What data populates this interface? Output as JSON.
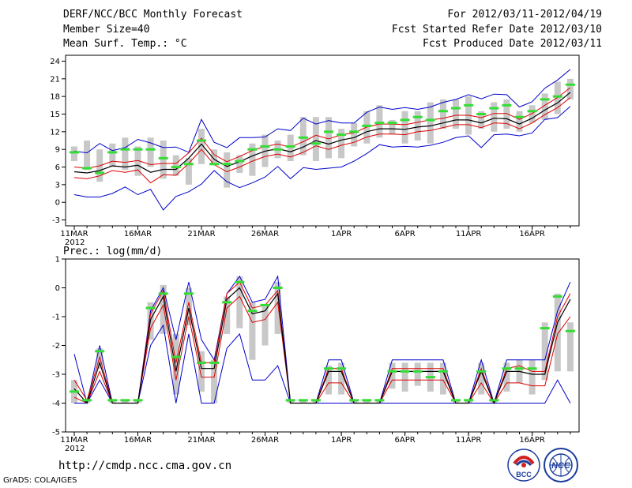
{
  "header": {
    "title": "DERF/NCC/BCC Monthly Forecast",
    "member_size": "Member Size=40",
    "variable": "Mean Surf. Temp.: °C",
    "period": "For 2012/03/11-2012/04/19",
    "started": "Fcst Started Refer Date 2012/03/10",
    "produced": "Fcst Produced Date 2012/03/11"
  },
  "footer": {
    "url": "http://cmdp.ncc.cma.gov.cn",
    "grads": "GrADS: COLA/IGES"
  },
  "logos": {
    "bcc": "BCC",
    "ncc": "NCC"
  },
  "colors": {
    "ens_max_min": "#0000cc",
    "spread": "#dd0000",
    "mean": "#000000",
    "obs_clim": "#33dd33",
    "boxes": "#c8c8c8"
  },
  "chart_data": [
    {
      "type": "line",
      "name": "temperature",
      "ylabel": "Mean Surf. Temp.: °C",
      "ylim": [
        -4,
        25
      ],
      "yticks": [
        -3,
        0,
        3,
        6,
        9,
        12,
        15,
        18,
        21,
        24
      ],
      "xtick_labels": [
        {
          "day": 0,
          "label": "11MAR"
        },
        {
          "day": 5,
          "label": "16MAR"
        },
        {
          "day": 10,
          "label": "21MAR"
        },
        {
          "day": 15,
          "label": "26MAR"
        },
        {
          "day": 21,
          "label": "1APR"
        },
        {
          "day": 26,
          "label": "6APR"
        },
        {
          "day": 31,
          "label": "11APR"
        },
        {
          "day": 36,
          "label": "16APR"
        }
      ],
      "year_label": "2012",
      "series": [
        {
          "name": "ensemble mean",
          "values": [
            5.2,
            5.0,
            5.4,
            6.2,
            6.0,
            6.3,
            5.1,
            5.6,
            5.6,
            7.5,
            9.9,
            7.3,
            6.1,
            6.9,
            7.9,
            8.7,
            9.1,
            8.6,
            9.4,
            10.5,
            9.9,
            10.6,
            11.0,
            12.0,
            12.5,
            12.5,
            12.4,
            12.8,
            13.0,
            13.5,
            14.0,
            14.0,
            13.5,
            14.3,
            14.2,
            13.3,
            14.3,
            15.7,
            16.9,
            18.7
          ]
        },
        {
          "name": "upper spread",
          "values": [
            6.0,
            5.8,
            6.2,
            7.0,
            6.8,
            7.1,
            6.4,
            6.6,
            6.6,
            8.4,
            10.9,
            8.1,
            6.9,
            7.8,
            8.8,
            9.5,
            9.9,
            9.4,
            10.3,
            11.4,
            10.8,
            11.5,
            11.8,
            12.8,
            13.3,
            13.3,
            13.2,
            13.6,
            14.0,
            14.3,
            14.8,
            14.8,
            14.4,
            15.1,
            15.1,
            14.1,
            15.1,
            16.5,
            17.8,
            19.5
          ]
        },
        {
          "name": "lower spread",
          "values": [
            4.2,
            4.0,
            4.5,
            5.4,
            5.1,
            5.5,
            3.3,
            4.7,
            4.6,
            6.6,
            9.0,
            6.4,
            5.2,
            6.0,
            7.0,
            7.8,
            8.2,
            7.7,
            8.5,
            9.6,
            9.0,
            9.7,
            10.2,
            11.1,
            11.6,
            11.6,
            11.5,
            12.0,
            12.2,
            12.7,
            13.2,
            13.2,
            12.7,
            13.5,
            13.4,
            12.5,
            13.5,
            14.9,
            16.1,
            17.8
          ]
        },
        {
          "name": "ensemble max",
          "values": [
            8.7,
            8.4,
            10.0,
            8.8,
            9.3,
            10.7,
            10.1,
            9.3,
            9.4,
            8.5,
            14.1,
            10.2,
            9.3,
            11.0,
            11.0,
            11.1,
            12.5,
            12.2,
            14.3,
            13.3,
            13.9,
            13.5,
            13.5,
            15.3,
            16.2,
            15.8,
            16.1,
            15.8,
            16.2,
            17.0,
            17.5,
            18.3,
            17.6,
            18.4,
            18.3,
            16.2,
            17.1,
            19.4,
            20.8,
            22.6
          ]
        },
        {
          "name": "ensemble min",
          "values": [
            1.3,
            0.9,
            0.9,
            1.5,
            2.6,
            1.3,
            2.2,
            -1.3,
            1.0,
            1.8,
            3.1,
            5.4,
            3.5,
            2.5,
            3.3,
            4.3,
            6.1,
            4.0,
            5.9,
            5.6,
            5.8,
            6.0,
            7.0,
            8.3,
            9.8,
            9.4,
            9.5,
            9.4,
            9.7,
            10.2,
            11.0,
            11.3,
            9.3,
            11.5,
            11.6,
            11.3,
            11.8,
            14.1,
            14.4,
            16.3
          ]
        },
        {
          "name": "observed climatology",
          "values": [
            8.5,
            5.8,
            5.0,
            8.5,
            9.0,
            9.0,
            9.0,
            7.5,
            6.0,
            6.5,
            10.5,
            6.5,
            6.5,
            7.0,
            9.0,
            9.5,
            9.0,
            9.5,
            11.0,
            10.0,
            12.0,
            11.5,
            12.0,
            13.0,
            13.5,
            13.5,
            14.0,
            14.5,
            14.0,
            15.5,
            16.0,
            16.5,
            15.0,
            16.0,
            16.5,
            14.5,
            15.5,
            17.5,
            18.0,
            20.0
          ]
        }
      ],
      "box_ranges": [
        [
          7.0,
          9.5
        ],
        [
          5.5,
          10.5
        ],
        [
          3.5,
          9.0
        ],
        [
          6.0,
          10.0
        ],
        [
          5.5,
          11.0
        ],
        [
          4.5,
          9.5
        ],
        [
          6.0,
          11.0
        ],
        [
          4.0,
          10.5
        ],
        [
          4.5,
          8.0
        ],
        [
          3.0,
          7.5
        ],
        [
          6.5,
          12.5
        ],
        [
          6.5,
          9.0
        ],
        [
          2.5,
          8.5
        ],
        [
          5.0,
          8.0
        ],
        [
          4.5,
          10.0
        ],
        [
          6.0,
          11.5
        ],
        [
          7.5,
          10.5
        ],
        [
          7.0,
          11.5
        ],
        [
          8.0,
          14.5
        ],
        [
          7.0,
          14.5
        ],
        [
          7.5,
          14.5
        ],
        [
          7.5,
          12.5
        ],
        [
          9.5,
          13.5
        ],
        [
          10.0,
          15.5
        ],
        [
          11.0,
          16.5
        ],
        [
          11.5,
          14.0
        ],
        [
          10.0,
          15.5
        ],
        [
          10.5,
          15.5
        ],
        [
          10.0,
          17.0
        ],
        [
          12.5,
          17.5
        ],
        [
          12.5,
          17.5
        ],
        [
          11.5,
          18.0
        ],
        [
          12.5,
          15.5
        ],
        [
          12.0,
          17.0
        ],
        [
          12.5,
          17.5
        ],
        [
          12.0,
          15.5
        ],
        [
          13.5,
          16.5
        ],
        [
          14.0,
          18.5
        ],
        [
          15.0,
          20.5
        ],
        [
          17.5,
          21.0
        ]
      ]
    },
    {
      "type": "line",
      "name": "precipitation",
      "ylabel": "Prec.: log(mm/d)",
      "ylim": [
        -5,
        1
      ],
      "yticks": [
        -5,
        -4,
        -3,
        -2,
        -1,
        0,
        1
      ],
      "xtick_labels": [
        {
          "day": 0,
          "label": "11MAR"
        },
        {
          "day": 5,
          "label": "16MAR"
        },
        {
          "day": 10,
          "label": "21MAR"
        },
        {
          "day": 15,
          "label": "26MAR"
        },
        {
          "day": 21,
          "label": "1APR"
        },
        {
          "day": 26,
          "label": "6APR"
        },
        {
          "day": 31,
          "label": "11APR"
        },
        {
          "day": 36,
          "label": "16APR"
        }
      ],
      "year_label": "2012",
      "series": [
        {
          "name": "ensemble mean",
          "values": [
            -3.5,
            -4.0,
            -2.6,
            -4.0,
            -4.0,
            -4.0,
            -1.1,
            -0.3,
            -2.9,
            -0.7,
            -2.8,
            -2.8,
            -0.4,
            0.0,
            -0.9,
            -0.8,
            -0.2,
            -4.0,
            -4.0,
            -4.0,
            -2.9,
            -2.9,
            -4.0,
            -4.0,
            -4.0,
            -2.9,
            -2.9,
            -2.9,
            -2.9,
            -2.9,
            -4.0,
            -4.0,
            -2.9,
            -4.0,
            -2.9,
            -2.9,
            -3.0,
            -3.0,
            -1.2,
            -0.4
          ]
        },
        {
          "name": "upper spread",
          "values": [
            -3.2,
            -3.9,
            -2.4,
            -4.0,
            -4.0,
            -4.0,
            -0.9,
            -0.1,
            -2.6,
            -0.5,
            -2.6,
            -2.6,
            -0.2,
            0.2,
            -0.7,
            -0.6,
            -0.1,
            -4.0,
            -4.0,
            -4.0,
            -2.8,
            -2.8,
            -4.0,
            -4.0,
            -4.0,
            -2.8,
            -2.8,
            -2.8,
            -2.8,
            -2.8,
            -4.0,
            -4.0,
            -2.8,
            -4.0,
            -2.8,
            -2.7,
            -2.9,
            -2.9,
            -1.0,
            -0.2
          ]
        },
        {
          "name": "lower spread",
          "values": [
            -3.8,
            -4.0,
            -2.9,
            -4.0,
            -4.0,
            -4.0,
            -1.4,
            -0.6,
            -3.2,
            -1.0,
            -3.1,
            -3.1,
            -0.7,
            -0.3,
            -1.2,
            -1.1,
            -0.5,
            -4.0,
            -4.0,
            -4.0,
            -3.3,
            -3.3,
            -4.0,
            -4.0,
            -4.0,
            -3.2,
            -3.2,
            -3.2,
            -3.2,
            -3.2,
            -4.0,
            -4.0,
            -3.3,
            -4.0,
            -3.3,
            -3.3,
            -3.4,
            -3.4,
            -1.6,
            -1.0
          ]
        },
        {
          "name": "ensemble max",
          "values": [
            -2.3,
            -4.0,
            -2.0,
            -4.0,
            -4.0,
            -4.0,
            -0.8,
            0.0,
            -1.8,
            0.2,
            -1.8,
            -2.5,
            -0.2,
            0.4,
            -0.5,
            -0.4,
            0.4,
            -4.0,
            -4.0,
            -4.0,
            -2.5,
            -2.5,
            -4.0,
            -4.0,
            -4.0,
            -2.5,
            -2.5,
            -2.5,
            -2.5,
            -2.5,
            -4.0,
            -4.0,
            -2.5,
            -4.0,
            -2.5,
            -2.5,
            -2.5,
            -2.5,
            -0.8,
            0.2
          ]
        },
        {
          "name": "ensemble min",
          "values": [
            -4.0,
            -4.0,
            -3.2,
            -4.0,
            -4.0,
            -4.0,
            -2.0,
            -1.3,
            -4.0,
            -1.6,
            -4.0,
            -4.0,
            -2.1,
            -1.6,
            -3.2,
            -3.2,
            -2.7,
            -4.0,
            -4.0,
            -4.0,
            -4.0,
            -4.0,
            -4.0,
            -4.0,
            -4.0,
            -4.0,
            -4.0,
            -4.0,
            -4.0,
            -4.0,
            -4.0,
            -4.0,
            -4.0,
            -4.0,
            -4.0,
            -4.0,
            -4.0,
            -4.0,
            -3.2,
            -4.0
          ]
        },
        {
          "name": "observed climatology",
          "values": [
            -3.6,
            -3.9,
            -2.2,
            -3.9,
            -3.9,
            -3.9,
            -0.7,
            -0.2,
            -2.4,
            -0.2,
            -2.6,
            -2.6,
            -0.5,
            0.2,
            -0.8,
            -0.6,
            0.0,
            -3.9,
            -3.9,
            -3.9,
            -2.8,
            -2.8,
            -3.9,
            -3.9,
            -3.9,
            -2.9,
            -2.9,
            -2.9,
            -3.1,
            -2.9,
            -3.9,
            -3.9,
            -2.9,
            -3.9,
            -2.8,
            -2.8,
            -2.8,
            -1.4,
            -0.3,
            -1.5
          ]
        }
      ],
      "box_ranges": [
        [
          -4.0,
          -3.2
        ],
        [
          -4.0,
          -3.9
        ],
        [
          -2.8,
          -2.1
        ],
        [
          -4.0,
          -3.9
        ],
        [
          -4.0,
          -3.9
        ],
        [
          -4.0,
          -3.9
        ],
        [
          -1.8,
          -0.5
        ],
        [
          -1.6,
          0.1
        ],
        [
          -3.7,
          -1.6
        ],
        [
          -1.3,
          0.0
        ],
        [
          -3.6,
          -2.2
        ],
        [
          -4.0,
          -2.5
        ],
        [
          -1.6,
          -0.3
        ],
        [
          -1.4,
          0.4
        ],
        [
          -2.5,
          -0.5
        ],
        [
          -2.0,
          -0.6
        ],
        [
          -1.6,
          0.2
        ],
        [
          -4.0,
          -3.9
        ],
        [
          -4.0,
          -3.9
        ],
        [
          -4.0,
          -3.9
        ],
        [
          -3.7,
          -2.7
        ],
        [
          -3.7,
          -2.6
        ],
        [
          -4.0,
          -3.9
        ],
        [
          -4.0,
          -3.9
        ],
        [
          -4.0,
          -3.9
        ],
        [
          -3.5,
          -2.6
        ],
        [
          -3.6,
          -2.6
        ],
        [
          -3.4,
          -2.6
        ],
        [
          -3.6,
          -2.6
        ],
        [
          -3.7,
          -2.6
        ],
        [
          -4.0,
          -3.9
        ],
        [
          -4.0,
          -3.9
        ],
        [
          -3.7,
          -2.6
        ],
        [
          -4.0,
          -3.9
        ],
        [
          -3.6,
          -2.6
        ],
        [
          -3.3,
          -2.5
        ],
        [
          -3.7,
          -2.5
        ],
        [
          -3.2,
          -1.2
        ],
        [
          -2.9,
          -0.2
        ],
        [
          -2.9,
          -1.2
        ]
      ]
    }
  ]
}
